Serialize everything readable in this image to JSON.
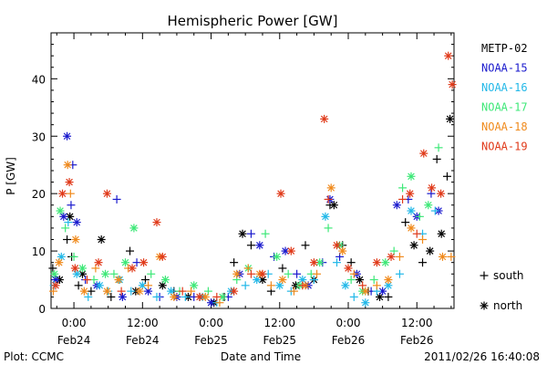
{
  "chart_data": {
    "type": "scatter",
    "title": "Hemispheric Power [GW]",
    "xlabel": "Date and Time",
    "ylabel": "P [GW]",
    "x_unit": "hours since 2011-02-23 00:00 UT (axis shows dates)",
    "xlim": [
      20.0,
      90.5
    ],
    "ylim": [
      0,
      48
    ],
    "y_ticks": [
      0,
      10,
      20,
      30,
      40
    ],
    "x_ticks": [
      {
        "x": 24,
        "time": "0:00",
        "date": "Feb24"
      },
      {
        "x": 36,
        "time": "12:00",
        "date": "Feb24"
      },
      {
        "x": 48,
        "time": "0:00",
        "date": "Feb25"
      },
      {
        "x": 60,
        "time": "12:00",
        "date": "Feb25"
      },
      {
        "x": 72,
        "time": "0:00",
        "date": "Feb26"
      },
      {
        "x": 84,
        "time": "12:00",
        "date": "Feb26"
      }
    ],
    "legend": {
      "placement": "right",
      "series": [
        {
          "name": "METP-02",
          "color": "#000000"
        },
        {
          "name": "NOAA-15",
          "color": "#1a1acd"
        },
        {
          "name": "NOAA-16",
          "color": "#22b8e8"
        },
        {
          "name": "NOAA-17",
          "color": "#3ee878"
        },
        {
          "name": "NOAA-18",
          "color": "#f08a1c"
        },
        {
          "name": "NOAA-19",
          "color": "#e03a1a"
        }
      ],
      "markers": [
        {
          "symbol": "+",
          "label": "south"
        },
        {
          "symbol": "*",
          "label": "north"
        }
      ]
    },
    "footer_left": "Plot: CCMC",
    "footer_right": "2011/02/26 16:40:08",
    "series": [
      {
        "name": "METP-02",
        "points": [
          [
            20.3,
            7,
            "s"
          ],
          [
            21.5,
            5,
            "n"
          ],
          [
            22.8,
            12,
            "s"
          ],
          [
            23.3,
            16,
            "n"
          ],
          [
            23.6,
            9,
            "s"
          ],
          [
            24.8,
            4,
            "s"
          ],
          [
            25.5,
            6,
            "n"
          ],
          [
            27,
            3,
            "s"
          ],
          [
            28.8,
            12,
            "n"
          ],
          [
            30.5,
            2,
            "s"
          ],
          [
            33.8,
            10,
            "s"
          ],
          [
            34.8,
            3,
            "n"
          ],
          [
            36.5,
            5,
            "s"
          ],
          [
            39.5,
            4,
            "n"
          ],
          [
            41.5,
            3,
            "s"
          ],
          [
            44,
            2,
            "n"
          ],
          [
            46,
            2,
            "s"
          ],
          [
            48.5,
            1,
            "n"
          ],
          [
            50.3,
            2,
            "s"
          ],
          [
            52,
            8,
            "s"
          ],
          [
            53.5,
            13,
            "n"
          ],
          [
            55,
            11,
            "s"
          ],
          [
            57,
            5,
            "n"
          ],
          [
            58.5,
            3,
            "s"
          ],
          [
            60.5,
            7,
            "s"
          ],
          [
            62.8,
            4,
            "n"
          ],
          [
            64.5,
            11,
            "s"
          ],
          [
            66,
            5,
            "n"
          ],
          [
            68.8,
            18,
            "s"
          ],
          [
            69.5,
            18,
            "n"
          ],
          [
            71,
            11,
            "s"
          ],
          [
            72.5,
            8,
            "s"
          ],
          [
            74,
            5,
            "n"
          ],
          [
            75.5,
            3,
            "s"
          ],
          [
            77.5,
            2,
            "n"
          ],
          [
            79,
            2,
            "s"
          ],
          [
            82,
            15,
            "s"
          ],
          [
            83.5,
            11,
            "n"
          ],
          [
            85,
            8,
            "s"
          ],
          [
            86.3,
            10,
            "n"
          ],
          [
            87.5,
            26,
            "s"
          ],
          [
            88.3,
            13,
            "n"
          ],
          [
            89.3,
            23,
            "s"
          ],
          [
            89.8,
            33,
            "n"
          ]
        ]
      },
      {
        "name": "NOAA-15",
        "points": [
          [
            20.8,
            5,
            "n"
          ],
          [
            22.2,
            16,
            "n"
          ],
          [
            22.8,
            30,
            "n"
          ],
          [
            23.5,
            18,
            "s"
          ],
          [
            23.8,
            25,
            "s"
          ],
          [
            24.5,
            15,
            "n"
          ],
          [
            26,
            5,
            "s"
          ],
          [
            28,
            4,
            "n"
          ],
          [
            31.5,
            19,
            "s"
          ],
          [
            32.5,
            2,
            "n"
          ],
          [
            35,
            8,
            "s"
          ],
          [
            37,
            3,
            "n"
          ],
          [
            39,
            2,
            "s"
          ],
          [
            42,
            2,
            "n"
          ],
          [
            45,
            2,
            "s"
          ],
          [
            48,
            1,
            "n"
          ],
          [
            51,
            2,
            "s"
          ],
          [
            53,
            6,
            "n"
          ],
          [
            55,
            13,
            "s"
          ],
          [
            56.5,
            11,
            "n"
          ],
          [
            59,
            9,
            "s"
          ],
          [
            61,
            10,
            "n"
          ],
          [
            63,
            6,
            "s"
          ],
          [
            65,
            4,
            "n"
          ],
          [
            67.5,
            8,
            "s"
          ],
          [
            68.8,
            19,
            "n"
          ],
          [
            70.5,
            9,
            "s"
          ],
          [
            73.5,
            6,
            "n"
          ],
          [
            76,
            3,
            "s"
          ],
          [
            78,
            3,
            "n"
          ],
          [
            80.5,
            18,
            "n"
          ],
          [
            82.5,
            19,
            "s"
          ],
          [
            84,
            16,
            "n"
          ],
          [
            86.5,
            20,
            "s"
          ],
          [
            87.8,
            17,
            "n"
          ]
        ]
      },
      {
        "name": "NOAA-16",
        "points": [
          [
            20.5,
            4,
            "s"
          ],
          [
            21.8,
            9,
            "n"
          ],
          [
            23,
            15,
            "s"
          ],
          [
            24.5,
            6,
            "n"
          ],
          [
            26.5,
            2,
            "s"
          ],
          [
            28.5,
            4,
            "n"
          ],
          [
            30,
            3,
            "s"
          ],
          [
            32,
            5,
            "n"
          ],
          [
            34,
            3,
            "s"
          ],
          [
            36,
            4,
            "n"
          ],
          [
            38.5,
            2,
            "s"
          ],
          [
            41,
            3,
            "n"
          ],
          [
            43.5,
            2,
            "s"
          ],
          [
            46.5,
            2,
            "n"
          ],
          [
            49,
            1,
            "s"
          ],
          [
            51.5,
            3,
            "n"
          ],
          [
            54,
            4,
            "s"
          ],
          [
            56,
            5,
            "n"
          ],
          [
            58,
            6,
            "s"
          ],
          [
            60,
            4,
            "n"
          ],
          [
            62,
            3,
            "s"
          ],
          [
            64,
            5,
            "n"
          ],
          [
            66,
            5,
            "s"
          ],
          [
            68,
            16,
            "n"
          ],
          [
            70,
            8,
            "s"
          ],
          [
            71.5,
            4,
            "n"
          ],
          [
            73,
            2,
            "s"
          ],
          [
            75,
            1,
            "n"
          ],
          [
            77,
            3,
            "s"
          ],
          [
            79,
            4,
            "n"
          ],
          [
            81,
            6,
            "s"
          ],
          [
            83,
            17,
            "n"
          ],
          [
            85,
            13,
            "s"
          ],
          [
            87.2,
            17,
            "s"
          ]
        ]
      },
      {
        "name": "NOAA-17",
        "points": [
          [
            20.6,
            6,
            "n"
          ],
          [
            21.6,
            17,
            "n"
          ],
          [
            22.5,
            14,
            "s"
          ],
          [
            24,
            9,
            "s"
          ],
          [
            25.5,
            7,
            "n"
          ],
          [
            27.5,
            5,
            "s"
          ],
          [
            29.5,
            6,
            "n"
          ],
          [
            31,
            6,
            "s"
          ],
          [
            33,
            8,
            "n"
          ],
          [
            34.5,
            14,
            "n"
          ],
          [
            37.5,
            6,
            "s"
          ],
          [
            40,
            5,
            "n"
          ],
          [
            42.5,
            3,
            "s"
          ],
          [
            45,
            4,
            "n"
          ],
          [
            47.5,
            3,
            "s"
          ],
          [
            50,
            2,
            "n"
          ],
          [
            52.5,
            5,
            "s"
          ],
          [
            54.5,
            7,
            "n"
          ],
          [
            57.5,
            13,
            "s"
          ],
          [
            59.5,
            9,
            "n"
          ],
          [
            61.5,
            6,
            "s"
          ],
          [
            63.5,
            4,
            "n"
          ],
          [
            65.5,
            6,
            "s"
          ],
          [
            67,
            8,
            "n"
          ],
          [
            68.5,
            14,
            "s"
          ],
          [
            70.5,
            11,
            "n"
          ],
          [
            72.5,
            5,
            "s"
          ],
          [
            74.5,
            3,
            "n"
          ],
          [
            76.5,
            5,
            "s"
          ],
          [
            78.5,
            8,
            "n"
          ],
          [
            80,
            10,
            "s"
          ],
          [
            81.5,
            21,
            "s"
          ],
          [
            83,
            23,
            "n"
          ],
          [
            84.5,
            16,
            "s"
          ],
          [
            86,
            18,
            "n"
          ],
          [
            87.8,
            28,
            "s"
          ]
        ]
      },
      {
        "name": "NOAA-18",
        "points": [
          [
            20.4,
            3,
            "s"
          ],
          [
            21.4,
            8,
            "n"
          ],
          [
            22.9,
            25,
            "n"
          ],
          [
            23.4,
            20,
            "s"
          ],
          [
            24.3,
            12,
            "n"
          ],
          [
            25.8,
            3,
            "n"
          ],
          [
            27.8,
            7,
            "s"
          ],
          [
            29.8,
            3,
            "n"
          ],
          [
            31.8,
            5,
            "n"
          ],
          [
            33.5,
            7,
            "s"
          ],
          [
            35.5,
            3,
            "n"
          ],
          [
            37,
            4,
            "s"
          ],
          [
            39,
            9,
            "n"
          ],
          [
            41.5,
            2,
            "n"
          ],
          [
            44.5,
            3,
            "s"
          ],
          [
            47,
            2,
            "n"
          ],
          [
            49.5,
            1,
            "s"
          ],
          [
            52.5,
            6,
            "n"
          ],
          [
            54.5,
            7,
            "s"
          ],
          [
            56.5,
            6,
            "n"
          ],
          [
            58.5,
            4,
            "s"
          ],
          [
            60.5,
            5,
            "n"
          ],
          [
            62.5,
            3,
            "s"
          ],
          [
            64.5,
            4,
            "n"
          ],
          [
            66.5,
            6,
            "s"
          ],
          [
            69,
            21,
            "n"
          ],
          [
            71,
            10,
            "n"
          ],
          [
            73,
            6,
            "s"
          ],
          [
            75,
            3,
            "n"
          ],
          [
            77,
            4,
            "s"
          ],
          [
            79,
            5,
            "n"
          ],
          [
            81,
            9,
            "s"
          ],
          [
            83,
            14,
            "n"
          ],
          [
            85,
            12,
            "s"
          ],
          [
            88.5,
            9,
            "n"
          ],
          [
            90,
            9,
            "s"
          ]
        ]
      },
      {
        "name": "NOAA-19",
        "points": [
          [
            20.8,
            4,
            "n"
          ],
          [
            22,
            20,
            "n"
          ],
          [
            23.2,
            22,
            "n"
          ],
          [
            24.2,
            7,
            "n"
          ],
          [
            26.3,
            5,
            "s"
          ],
          [
            28.3,
            8,
            "n"
          ],
          [
            29.8,
            20,
            "n"
          ],
          [
            32.3,
            3,
            "s"
          ],
          [
            34.2,
            7,
            "n"
          ],
          [
            36.2,
            8,
            "n"
          ],
          [
            38.5,
            15,
            "n"
          ],
          [
            39.5,
            9,
            "n"
          ],
          [
            43,
            3,
            "s"
          ],
          [
            46,
            2,
            "n"
          ],
          [
            49,
            2,
            "s"
          ],
          [
            52,
            3,
            "n"
          ],
          [
            55,
            6,
            "s"
          ],
          [
            57,
            6,
            "n"
          ],
          [
            60.2,
            20,
            "n"
          ],
          [
            62,
            10,
            "n"
          ],
          [
            64,
            4,
            "s"
          ],
          [
            66,
            8,
            "n"
          ],
          [
            67.8,
            33,
            "n"
          ],
          [
            68.5,
            19,
            "s"
          ],
          [
            70,
            11,
            "n"
          ],
          [
            72,
            7,
            "n"
          ],
          [
            74.5,
            4,
            "s"
          ],
          [
            77,
            8,
            "n"
          ],
          [
            79.5,
            9,
            "n"
          ],
          [
            81.5,
            19,
            "s"
          ],
          [
            82.8,
            20,
            "n"
          ],
          [
            84,
            13,
            "s"
          ],
          [
            85.2,
            27,
            "n"
          ],
          [
            86.6,
            21,
            "n"
          ],
          [
            88.2,
            20,
            "n"
          ],
          [
            89.5,
            44,
            "n"
          ],
          [
            90.2,
            39,
            "n"
          ]
        ]
      }
    ]
  }
}
